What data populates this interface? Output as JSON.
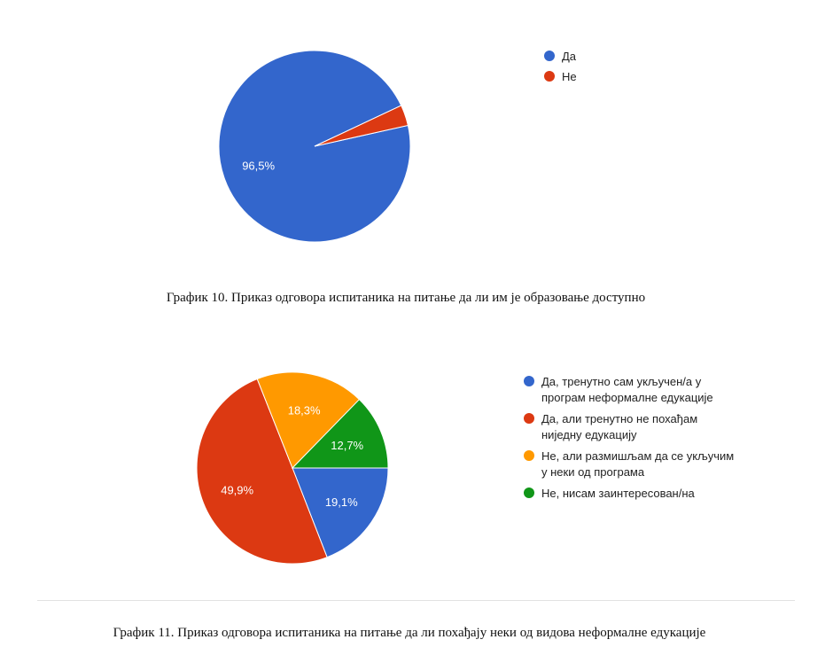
{
  "chart_data": [
    {
      "type": "pie",
      "categories": [
        "Да",
        "Не"
      ],
      "values": [
        96.5,
        3.5
      ],
      "value_labels": [
        "96,5%",
        ""
      ],
      "colors": [
        "#3366cc",
        "#dc3912"
      ],
      "legend_position": "right"
    },
    {
      "type": "pie",
      "categories": [
        "Да, тренутно сам укључен/а у програм неформалне едукације",
        "Да, али тренутно не похађам ниједну едукацију",
        "Не, али размишљам да се укључим у неки од програма",
        "Не, нисам заинтересован/на"
      ],
      "legend_lines": [
        [
          "Да, тренутно сам укључен/а у",
          "програм неформалне едукације"
        ],
        [
          "Да, али тренутно не похађам",
          "ниједну едукацију"
        ],
        [
          "Не, али размишљам да се укључим",
          "у неки од програма"
        ],
        [
          "Не, нисам заинтересован/на"
        ]
      ],
      "values": [
        19.1,
        49.9,
        18.3,
        12.7
      ],
      "value_labels": [
        "19,1%",
        "49,9%",
        "18,3%",
        "12,7%"
      ],
      "colors": [
        "#3366cc",
        "#dc3912",
        "#ff9900",
        "#109618"
      ],
      "legend_position": "right"
    }
  ],
  "captions": {
    "chart1": "График 10. Приказ одговора испитаника на питање да ли им је образовање доступно",
    "chart2": "График 11. Приказ одговора испитаника на питање да ли похађају неки од видова неформалне едукације"
  }
}
